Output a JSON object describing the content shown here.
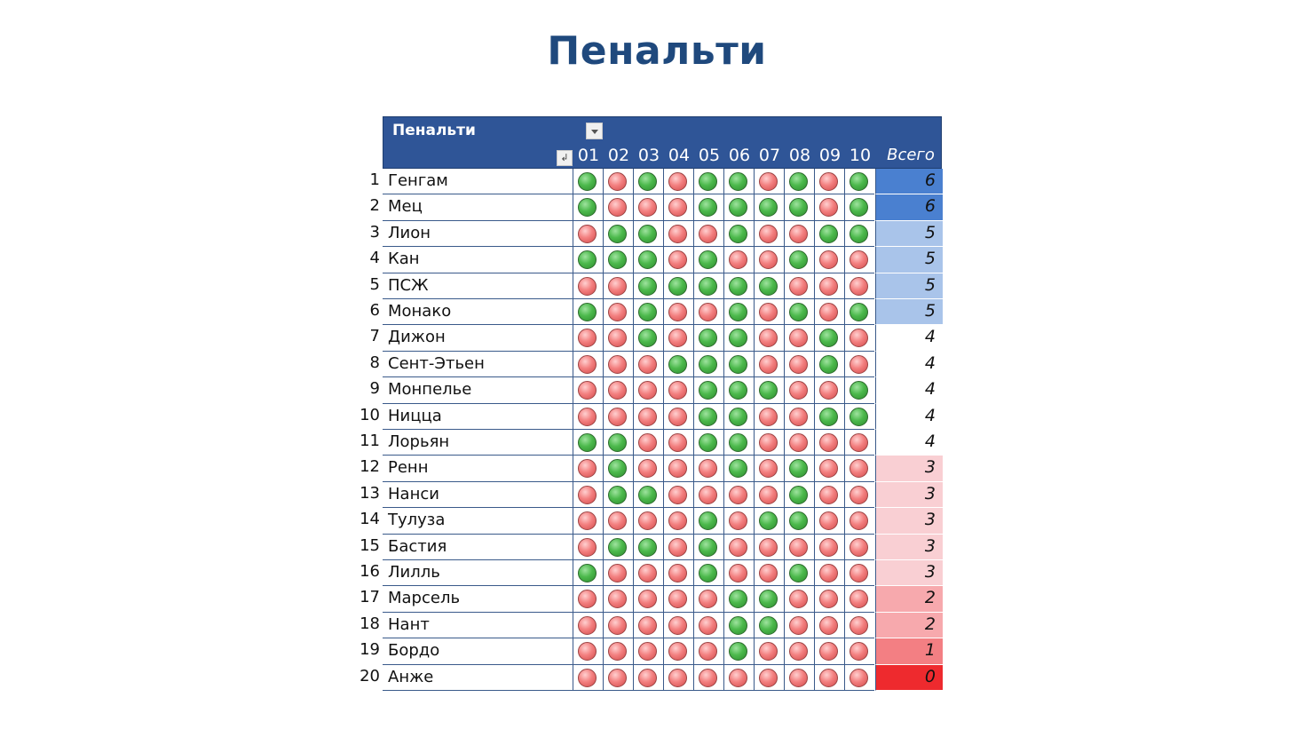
{
  "title": "Пенальти",
  "table": {
    "header_label": "Пенальти",
    "columns": [
      "01",
      "02",
      "03",
      "04",
      "05",
      "06",
      "07",
      "08",
      "09",
      "10"
    ],
    "total_label": "Всего",
    "color_scale": {
      "high": "#4a80d0",
      "mid_high": "#a9c4ea",
      "neutral": "#ffffff",
      "mid_low": "#f9cfd3",
      "low_2": "#f7a9ad",
      "low_1": "#f37f83",
      "low_0": "#ee2a2e"
    },
    "rows": [
      {
        "num": "1",
        "team": "Генгам",
        "kicks": "GRGRGGRGRG",
        "total": "6"
      },
      {
        "num": "2",
        "team": "Мец",
        "kicks": "GRRRGGGGRG",
        "total": "6"
      },
      {
        "num": "3",
        "team": "Лион",
        "kicks": "RGGRRGRRGG",
        "total": "5"
      },
      {
        "num": "4",
        "team": "Кан",
        "kicks": "GGGRGRRGRR",
        "total": "5"
      },
      {
        "num": "5",
        "team": "ПСЖ",
        "kicks": "RRGGGGGRRR",
        "total": "5"
      },
      {
        "num": "6",
        "team": "Монако",
        "kicks": "GRGRRGRGRG",
        "total": "5"
      },
      {
        "num": "7",
        "team": "Дижон",
        "kicks": "RRGRGGRRGR",
        "total": "4"
      },
      {
        "num": "8",
        "team": "Сент-Этьен",
        "kicks": "RRRGGGRRGR",
        "total": "4"
      },
      {
        "num": "9",
        "team": "Монпелье",
        "kicks": "RRRRGGGRRG",
        "total": "4"
      },
      {
        "num": "10",
        "team": "Ницца",
        "kicks": "RRRRGGRRGG",
        "total": "4"
      },
      {
        "num": "11",
        "team": "Лорьян",
        "kicks": "GGRRGGRRRR",
        "total": "4"
      },
      {
        "num": "12",
        "team": "Ренн",
        "kicks": "RGRRRGRGRR",
        "total": "3"
      },
      {
        "num": "13",
        "team": "Нанси",
        "kicks": "RGGRRRRGRR",
        "total": "3"
      },
      {
        "num": "14",
        "team": "Тулуза",
        "kicks": "RRRRGRGGRR",
        "total": "3"
      },
      {
        "num": "15",
        "team": "Бастия",
        "kicks": "RGGRGRRRRR",
        "total": "3"
      },
      {
        "num": "16",
        "team": "Лилль",
        "kicks": "GRRRGRRGRR",
        "total": "3"
      },
      {
        "num": "17",
        "team": "Марсель",
        "kicks": "RRRRRGGRRR",
        "total": "2"
      },
      {
        "num": "18",
        "team": "Нант",
        "kicks": "RRRRRGGRRR",
        "total": "2"
      },
      {
        "num": "19",
        "team": "Бордо",
        "kicks": "RRRRRGRRRR",
        "total": "1"
      },
      {
        "num": "20",
        "team": "Анже",
        "kicks": "RRRRRRRRRR",
        "total": "0"
      }
    ]
  }
}
